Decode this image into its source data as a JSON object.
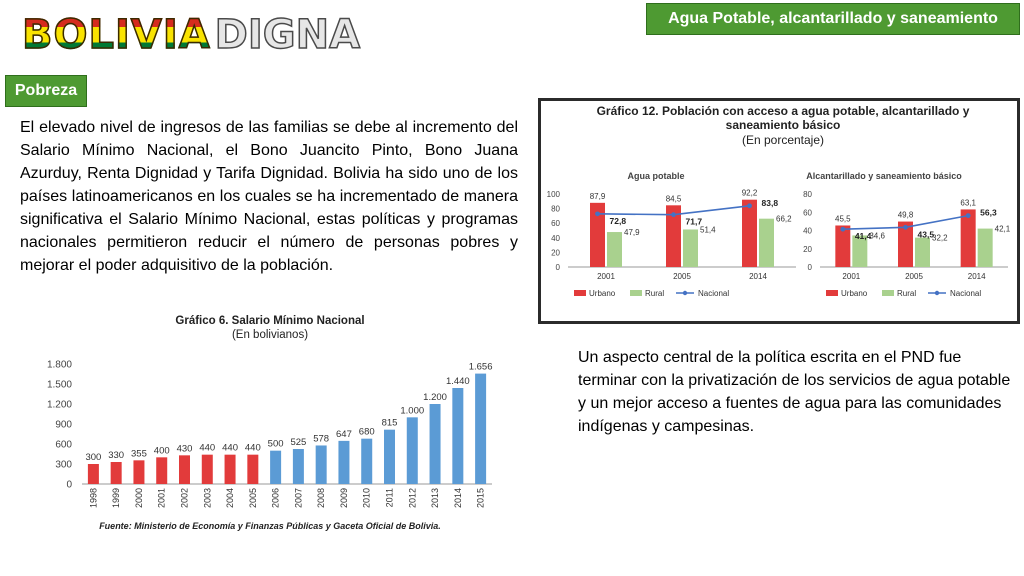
{
  "header": {
    "logo_part1": "BOLIVIA",
    "logo_part2": "DIGNA",
    "section_title": "Agua Potable, alcantarillado y saneamiento básico",
    "tag": "Pobreza"
  },
  "paragraph_left": "El elevado nivel de ingresos de las familias se debe al incremento del Salario Mínimo Nacional, el Bono Juancito Pinto, Bono Juana Azurduy, Renta Dignidad y Tarifa Dignidad. Bolivia ha sido uno de los países latinoamericanos en los cuales se ha incrementado de manera significativa el Salario Mínimo Nacional, estas políticas y programas nacionales permitieron reducir el número de personas pobres y mejorar el poder adquisitivo de la población.",
  "paragraph_right": "Un aspecto central de la política escrita en el PND fue terminar con la privatización de los servicios de agua potable y un mejor acceso a fuentes de agua para las comunidades indígenas y campesinas.",
  "colors": {
    "green": "#4e9a32",
    "red": "#e23b3b",
    "light_green": "#a9d18e",
    "blue": "#4472c4",
    "bar_blue": "#5b9bd5"
  },
  "chart_data": [
    {
      "id": "water",
      "type": "bar",
      "title": "Gráfico 12. Población con acceso a agua potable, alcantarillado y saneamiento básico",
      "subtitle": "(En porcentaje)",
      "panels": [
        {
          "title": "Agua potable",
          "categories": [
            "2001",
            "2005",
            "2014"
          ],
          "yticks": [
            0,
            20,
            40,
            60,
            80,
            100
          ],
          "ylim": [
            0,
            100
          ],
          "series": [
            {
              "name": "Urbano",
              "values": [
                87.9,
                84.5,
                92.2
              ],
              "labels": [
                "87,9",
                "84,5",
                "92,2"
              ]
            },
            {
              "name": "Rural",
              "values": [
                47.9,
                51.4,
                66.2
              ],
              "labels": [
                "47,9",
                "51,4",
                "66,2"
              ]
            },
            {
              "name": "Nacional",
              "kind": "line",
              "values": [
                72.8,
                71.7,
                83.8
              ],
              "labels": [
                "72,8",
                "71,7",
                "83,8"
              ]
            }
          ]
        },
        {
          "title": "Alcantarillado y saneamiento básico",
          "categories": [
            "2001",
            "2005",
            "2014"
          ],
          "yticks": [
            0,
            20,
            40,
            60,
            80
          ],
          "ylim": [
            0,
            80
          ],
          "series": [
            {
              "name": "Urbano",
              "values": [
                45.5,
                49.8,
                63.1
              ],
              "labels": [
                "45,5",
                "49,8",
                "63,1"
              ]
            },
            {
              "name": "Rural",
              "values": [
                34.6,
                32.2,
                42.1
              ],
              "labels": [
                "34,6",
                "32,2",
                "42,1"
              ]
            },
            {
              "name": "Nacional",
              "kind": "line",
              "values": [
                41.4,
                43.5,
                56.3
              ],
              "labels": [
                "41,4",
                "43,5",
                "56,3"
              ]
            }
          ]
        }
      ]
    },
    {
      "id": "wage",
      "type": "bar",
      "title": "Gráfico 6. Salario Mínimo Nacional",
      "subtitle": "(En bolivianos)",
      "categories": [
        "1998",
        "1999",
        "2000",
        "2001",
        "2002",
        "2003",
        "2004",
        "2005",
        "2006",
        "2007",
        "2008",
        "2009",
        "2010",
        "2011",
        "2012",
        "2013",
        "2014",
        "2015"
      ],
      "values": [
        300,
        330,
        355,
        400,
        430,
        440,
        440,
        440,
        500,
        525,
        578,
        647,
        680,
        815,
        1000,
        1200,
        1440,
        1656
      ],
      "labels": [
        "300",
        "330",
        "355",
        "400",
        "430",
        "440",
        "440",
        "440",
        "500",
        "525",
        "578",
        "647",
        "680",
        "815",
        "1.000",
        "1.200",
        "1.440",
        "1.656"
      ],
      "yticks": [
        0,
        300,
        600,
        900,
        1200,
        1500,
        1800
      ],
      "ytick_labels": [
        "0",
        "300",
        "600",
        "900",
        "1.200",
        "1.500",
        "1.800"
      ],
      "ylim": [
        0,
        1800
      ],
      "red_until_index": 7,
      "source": "Fuente: Ministerio de Economía y Finanzas Públicas y Gaceta Oficial de Bolivia."
    }
  ]
}
